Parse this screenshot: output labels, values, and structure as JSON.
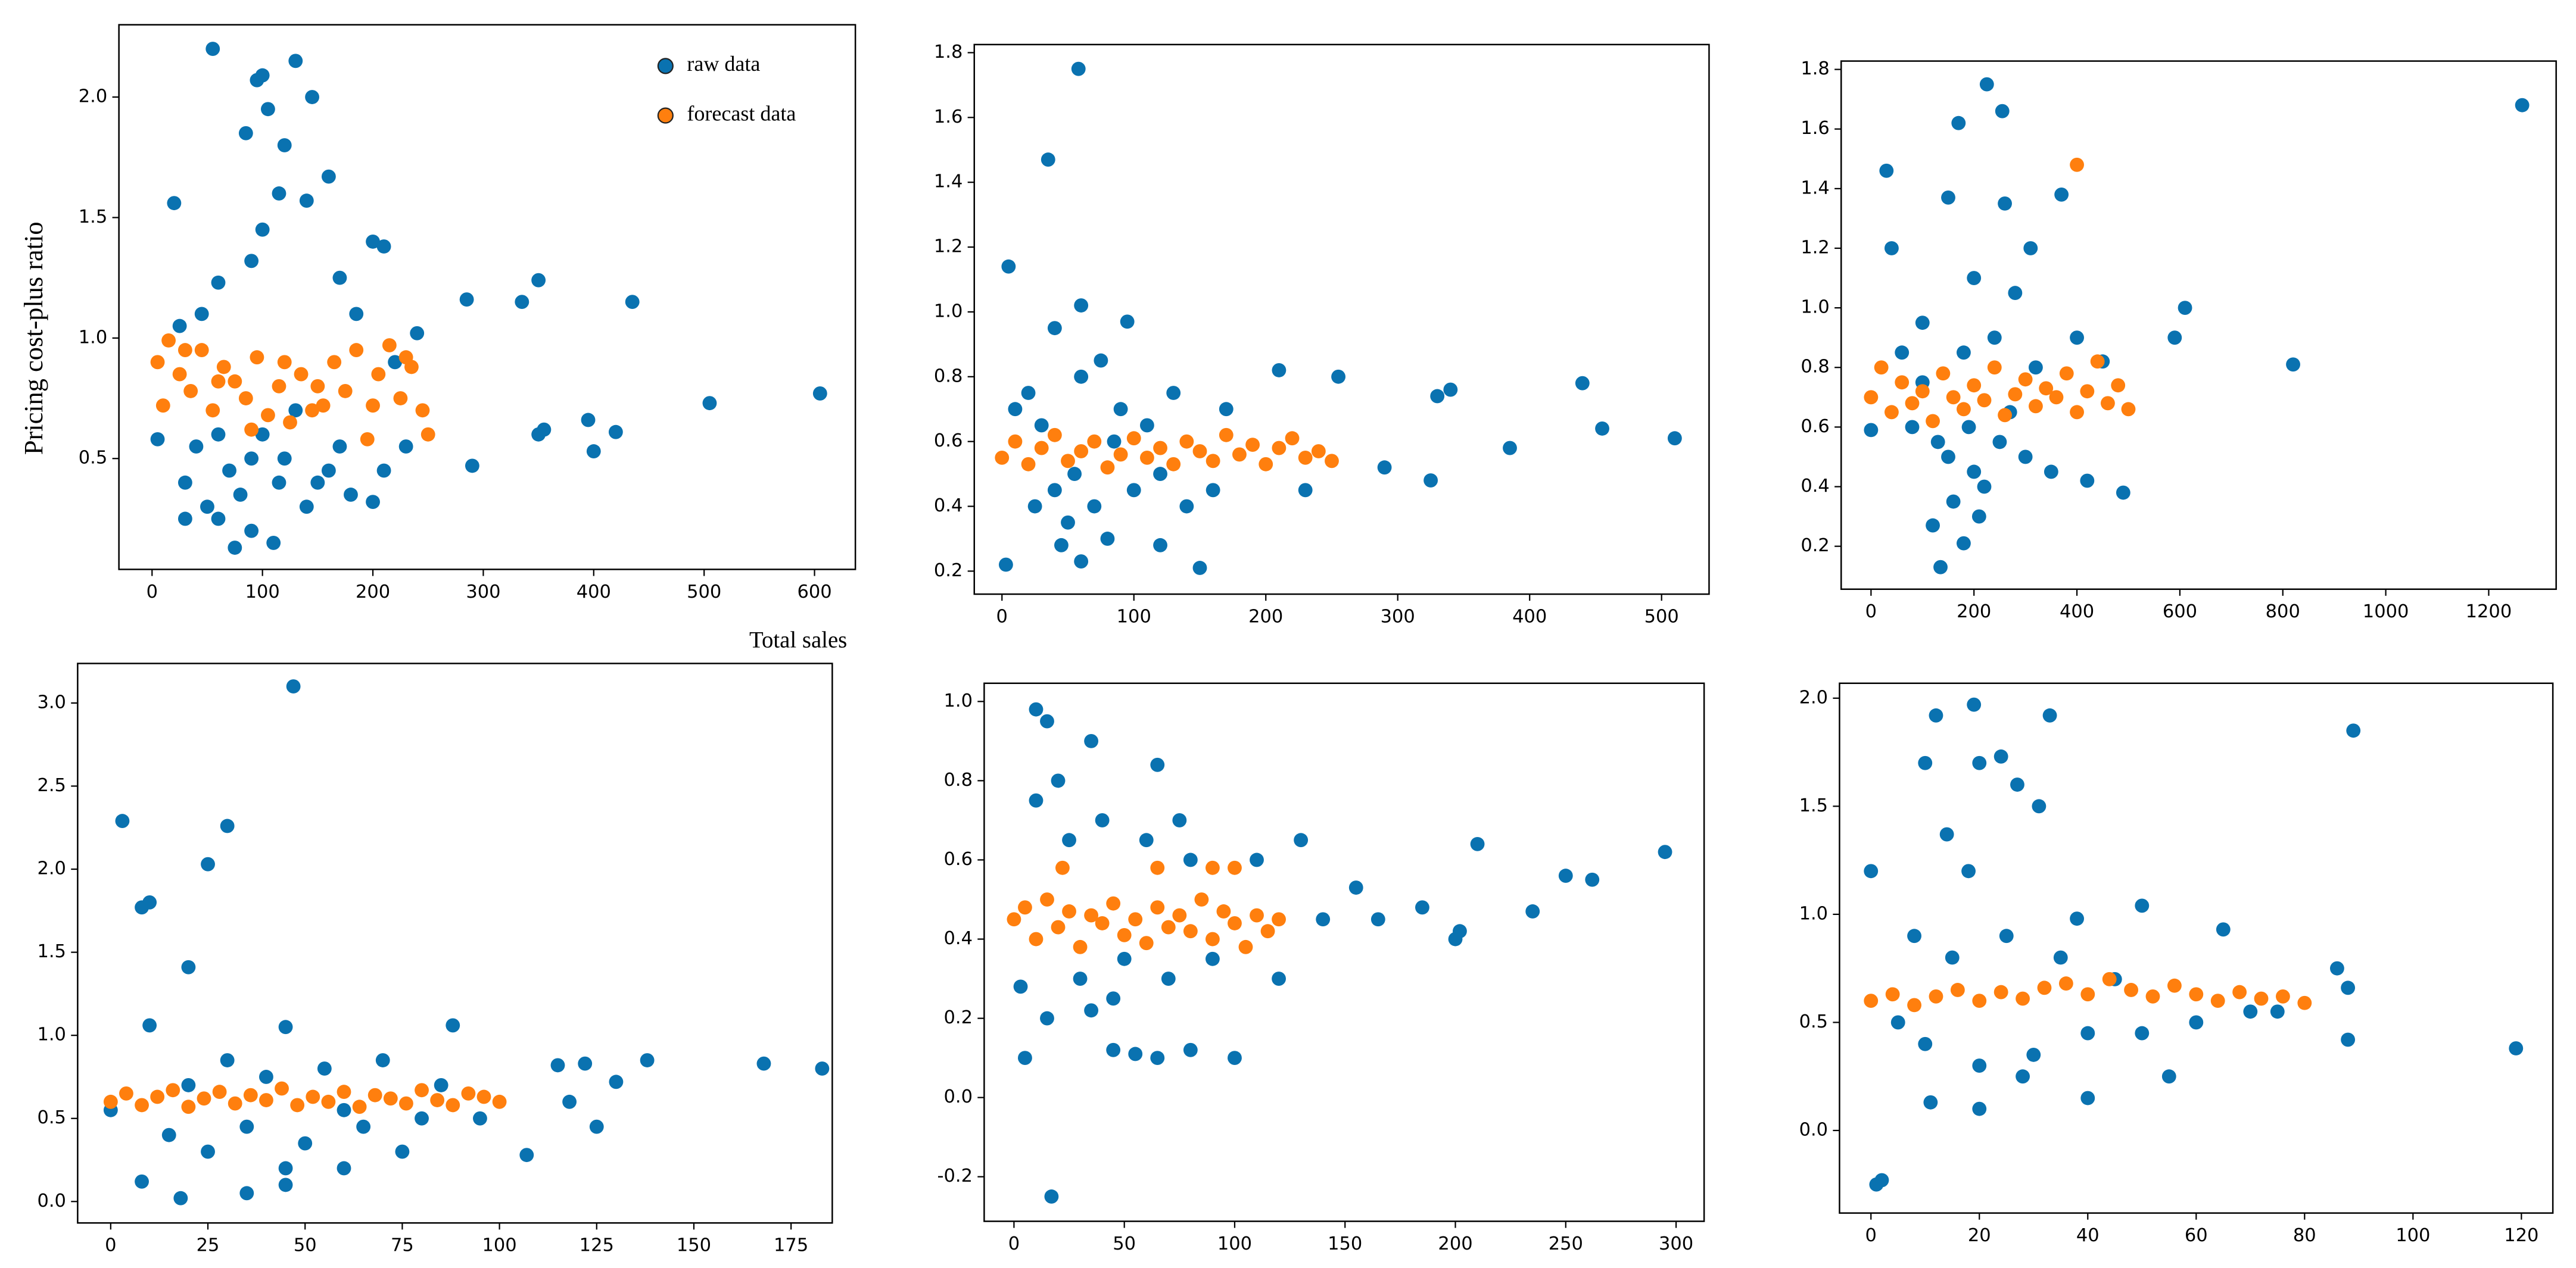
{
  "chart_data": [
    {
      "type": "scatter",
      "ylabel": "Pricing cost-plus ratio",
      "xlabel": "Total sales",
      "legend": "upper right",
      "xlim": [
        -30,
        637
      ],
      "ylim": [
        0.04,
        2.3
      ],
      "xticks": [
        0,
        100,
        200,
        300,
        400,
        500,
        600
      ],
      "yticks": [
        0.5,
        {
          "value": 1.0,
          "label": "1.0"
        },
        1.5,
        {
          "value": 2.0,
          "label": "2.0"
        }
      ],
      "series": [
        {
          "name": "raw data",
          "color": "#0a72b0",
          "x": [
            55,
            100,
            130,
            145,
            95,
            85,
            105,
            120,
            160,
            115,
            140,
            20,
            100,
            90,
            200,
            210,
            170,
            285,
            335,
            350,
            435,
            605,
            505,
            395,
            355,
            350,
            420,
            400,
            290,
            60,
            30,
            50,
            70,
            90,
            40,
            60,
            80,
            110,
            75,
            120,
            150,
            180,
            200,
            30,
            100,
            130,
            25,
            45,
            170,
            210,
            5,
            140,
            60,
            90,
            115,
            230,
            220,
            240,
            185,
            160
          ],
          "y": [
            2.2,
            2.09,
            2.15,
            2.0,
            2.07,
            1.85,
            1.95,
            1.8,
            1.67,
            1.6,
            1.57,
            1.56,
            1.45,
            1.32,
            1.4,
            1.38,
            1.25,
            1.16,
            1.15,
            1.24,
            1.15,
            0.77,
            0.73,
            0.66,
            0.62,
            0.6,
            0.61,
            0.53,
            0.47,
            1.23,
            0.4,
            0.3,
            0.45,
            0.2,
            0.55,
            0.25,
            0.35,
            0.15,
            0.13,
            0.5,
            0.4,
            0.35,
            0.32,
            0.25,
            0.6,
            0.7,
            1.05,
            1.1,
            0.55,
            0.45,
            0.58,
            0.3,
            0.6,
            0.5,
            0.4,
            0.55,
            0.9,
            1.02,
            1.1,
            0.45
          ]
        },
        {
          "name": "forecast data",
          "color": "#ff7f0e",
          "x": [
            5,
            15,
            25,
            35,
            45,
            55,
            65,
            75,
            85,
            95,
            105,
            115,
            125,
            135,
            145,
            155,
            165,
            175,
            185,
            195,
            205,
            215,
            225,
            235,
            245,
            250,
            10,
            30,
            60,
            90,
            120,
            150,
            200,
            230
          ],
          "y": [
            0.9,
            0.99,
            0.85,
            0.78,
            0.95,
            0.7,
            0.88,
            0.82,
            0.75,
            0.92,
            0.68,
            0.8,
            0.65,
            0.85,
            0.7,
            0.72,
            0.9,
            0.78,
            0.95,
            0.58,
            0.85,
            0.97,
            0.75,
            0.88,
            0.7,
            0.6,
            0.72,
            0.95,
            0.82,
            0.62,
            0.9,
            0.8,
            0.72,
            0.92
          ]
        }
      ]
    },
    {
      "type": "scatter",
      "xlim": [
        -21,
        536
      ],
      "ylim": [
        0.129,
        1.825
      ],
      "xticks": [
        0,
        100,
        200,
        300,
        400,
        500
      ],
      "yticks": [
        0.2,
        0.4,
        0.6,
        0.8,
        {
          "value": 1.0,
          "label": "1.0"
        },
        1.2,
        1.4,
        1.6,
        1.8
      ],
      "series": [
        {
          "color": "#0a72b0",
          "x": [
            58,
            35,
            5,
            60,
            95,
            210,
            255,
            440,
            340,
            330,
            455,
            510,
            385,
            290,
            325,
            3,
            150,
            60,
            120,
            170,
            230,
            40,
            20,
            30,
            40,
            50,
            60,
            70,
            80,
            90,
            100,
            110,
            120,
            130,
            140,
            160,
            25,
            45,
            75,
            10,
            55,
            85
          ],
          "y": [
            1.75,
            1.47,
            1.14,
            1.02,
            0.97,
            0.82,
            0.8,
            0.78,
            0.76,
            0.74,
            0.64,
            0.61,
            0.58,
            0.52,
            0.48,
            0.22,
            0.21,
            0.23,
            0.28,
            0.7,
            0.45,
            0.95,
            0.75,
            0.65,
            0.45,
            0.35,
            0.8,
            0.4,
            0.3,
            0.7,
            0.45,
            0.65,
            0.5,
            0.75,
            0.4,
            0.45,
            0.4,
            0.28,
            0.85,
            0.7,
            0.5,
            0.6
          ]
        },
        {
          "color": "#ff7f0e",
          "x": [
            0,
            10,
            20,
            30,
            40,
            50,
            60,
            70,
            80,
            90,
            100,
            110,
            120,
            130,
            140,
            150,
            160,
            170,
            180,
            190,
            200,
            210,
            220,
            230,
            240,
            250
          ],
          "y": [
            0.55,
            0.6,
            0.53,
            0.58,
            0.62,
            0.54,
            0.57,
            0.6,
            0.52,
            0.56,
            0.61,
            0.55,
            0.58,
            0.53,
            0.6,
            0.57,
            0.54,
            0.62,
            0.56,
            0.59,
            0.53,
            0.58,
            0.61,
            0.55,
            0.57,
            0.54
          ]
        }
      ]
    },
    {
      "type": "scatter",
      "xlim": [
        -58,
        1331
      ],
      "ylim": [
        0.056,
        1.828
      ],
      "xticks": [
        0,
        200,
        400,
        600,
        800,
        1000,
        1200
      ],
      "yticks": [
        0.2,
        0.4,
        0.6,
        0.8,
        {
          "value": 1.0,
          "label": "1.0"
        },
        1.2,
        1.4,
        1.6,
        1.8
      ],
      "series": [
        {
          "color": "#0a72b0",
          "x": [
            1265,
            225,
            170,
            255,
            30,
            150,
            260,
            370,
            40,
            310,
            610,
            590,
            820,
            450,
            490,
            420,
            180,
            120,
            135,
            0,
            200,
            100,
            280,
            80,
            150,
            200,
            250,
            100,
            180,
            220,
            300,
            350,
            160,
            240,
            320,
            130,
            190,
            270,
            60,
            400,
            210
          ],
          "y": [
            1.68,
            1.75,
            1.62,
            1.66,
            1.46,
            1.37,
            1.35,
            1.38,
            1.2,
            1.2,
            1.0,
            0.9,
            0.81,
            0.82,
            0.38,
            0.42,
            0.21,
            0.27,
            0.13,
            0.59,
            1.1,
            0.95,
            1.05,
            0.6,
            0.5,
            0.45,
            0.55,
            0.75,
            0.85,
            0.4,
            0.5,
            0.45,
            0.35,
            0.9,
            0.8,
            0.55,
            0.6,
            0.65,
            0.85,
            0.9,
            0.3
          ]
        },
        {
          "color": "#ff7f0e",
          "x": [
            400,
            0,
            20,
            40,
            60,
            80,
            100,
            120,
            140,
            160,
            180,
            200,
            220,
            240,
            260,
            280,
            300,
            320,
            340,
            360,
            380,
            400,
            420,
            440,
            460,
            480,
            500
          ],
          "y": [
            1.48,
            0.7,
            0.8,
            0.65,
            0.75,
            0.68,
            0.72,
            0.62,
            0.78,
            0.7,
            0.66,
            0.74,
            0.69,
            0.8,
            0.64,
            0.71,
            0.76,
            0.67,
            0.73,
            0.7,
            0.78,
            0.65,
            0.72,
            0.82,
            0.68,
            0.74,
            0.66
          ]
        }
      ]
    },
    {
      "type": "scatter",
      "xlim": [
        -8.5,
        185.6
      ],
      "ylim": [
        -0.129,
        3.238
      ],
      "xticks": [
        0,
        25,
        50,
        75,
        100,
        125,
        150,
        175
      ],
      "yticks": [
        {
          "value": 0.0,
          "label": "0.0"
        },
        0.5,
        {
          "value": 1.0,
          "label": "1.0"
        },
        1.5,
        {
          "value": 2.0,
          "label": "2.0"
        },
        2.5,
        {
          "value": 3.0,
          "label": "3.0"
        }
      ],
      "series": [
        {
          "color": "#0a72b0",
          "x": [
            47,
            3,
            30,
            25,
            10,
            8,
            20,
            10,
            45,
            88,
            168,
            183,
            138,
            122,
            115,
            130,
            125,
            107,
            118,
            8,
            18,
            35,
            45,
            60,
            75,
            0,
            15,
            25,
            35,
            40,
            50,
            55,
            65,
            70,
            80,
            30,
            20,
            45,
            60,
            85,
            95
          ],
          "y": [
            3.1,
            2.29,
            2.26,
            2.03,
            1.8,
            1.77,
            1.41,
            1.06,
            1.05,
            1.06,
            0.83,
            0.8,
            0.85,
            0.83,
            0.82,
            0.72,
            0.45,
            0.28,
            0.6,
            0.12,
            0.02,
            0.05,
            0.1,
            0.2,
            0.3,
            0.55,
            0.4,
            0.3,
            0.45,
            0.75,
            0.35,
            0.8,
            0.45,
            0.85,
            0.5,
            0.85,
            0.7,
            0.2,
            0.55,
            0.7,
            0.5
          ]
        },
        {
          "color": "#ff7f0e",
          "x": [
            0,
            4,
            8,
            12,
            16,
            20,
            24,
            28,
            32,
            36,
            40,
            44,
            48,
            52,
            56,
            60,
            64,
            68,
            72,
            76,
            80,
            84,
            88,
            92,
            96,
            100
          ],
          "y": [
            0.6,
            0.65,
            0.58,
            0.63,
            0.67,
            0.57,
            0.62,
            0.66,
            0.59,
            0.64,
            0.61,
            0.68,
            0.58,
            0.63,
            0.6,
            0.66,
            0.57,
            0.64,
            0.62,
            0.59,
            0.67,
            0.61,
            0.58,
            0.65,
            0.63,
            0.6
          ]
        }
      ]
    },
    {
      "type": "scatter",
      "xlim": [
        -13.5,
        312.7
      ],
      "ylim": [
        -0.3125,
        1.046
      ],
      "xticks": [
        0,
        50,
        100,
        150,
        200,
        250,
        300
      ],
      "yticks": [
        -0.2,
        {
          "value": 0.0,
          "label": "0.0"
        },
        0.2,
        0.4,
        0.6,
        0.8,
        {
          "value": 1.0,
          "label": "1.0"
        }
      ],
      "series": [
        {
          "color": "#0a72b0",
          "x": [
            17,
            10,
            15,
            35,
            65,
            5,
            45,
            55,
            65,
            80,
            100,
            295,
            210,
            250,
            262,
            235,
            185,
            200,
            202,
            130,
            155,
            120,
            140,
            165,
            3,
            110,
            20,
            25,
            30,
            40,
            50,
            60,
            70,
            80,
            10,
            15,
            45,
            90,
            75,
            35
          ],
          "y": [
            -0.25,
            0.98,
            0.95,
            0.9,
            0.84,
            0.1,
            0.12,
            0.11,
            0.1,
            0.12,
            0.1,
            0.62,
            0.64,
            0.56,
            0.55,
            0.47,
            0.48,
            0.4,
            0.42,
            0.65,
            0.53,
            0.3,
            0.45,
            0.45,
            0.28,
            0.6,
            0.8,
            0.65,
            0.3,
            0.7,
            0.35,
            0.65,
            0.3,
            0.6,
            0.75,
            0.2,
            0.25,
            0.35,
            0.7,
            0.22
          ]
        },
        {
          "color": "#ff7f0e",
          "x": [
            22,
            65,
            90,
            100,
            0,
            5,
            10,
            15,
            20,
            25,
            30,
            35,
            40,
            45,
            50,
            55,
            60,
            65,
            70,
            75,
            80,
            85,
            90,
            95,
            100,
            105,
            110,
            115,
            120
          ],
          "y": [
            0.58,
            0.58,
            0.58,
            0.58,
            0.45,
            0.48,
            0.4,
            0.5,
            0.43,
            0.47,
            0.38,
            0.46,
            0.44,
            0.49,
            0.41,
            0.45,
            0.39,
            0.48,
            0.43,
            0.46,
            0.42,
            0.5,
            0.4,
            0.47,
            0.44,
            0.38,
            0.46,
            0.42,
            0.45
          ]
        }
      ]
    },
    {
      "type": "scatter",
      "xlim": [
        -5.8,
        125.8
      ],
      "ylim": [
        -0.382,
        2.069
      ],
      "xticks": [
        0,
        20,
        40,
        60,
        80,
        100,
        120
      ],
      "yticks": [
        {
          "value": 0.0,
          "label": "0.0"
        },
        0.5,
        {
          "value": 1.0,
          "label": "1.0"
        },
        1.5,
        {
          "value": 2.0,
          "label": "2.0"
        }
      ],
      "series": [
        {
          "color": "#0a72b0",
          "x": [
            1,
            2,
            19,
            12,
            33,
            89,
            119,
            10,
            20,
            24,
            27,
            31,
            14,
            88,
            88,
            86,
            65,
            50,
            55,
            40,
            20,
            11,
            0,
            5,
            10,
            15,
            20,
            25,
            30,
            35,
            40,
            45,
            50,
            60,
            70,
            8,
            18,
            28,
            38,
            75
          ],
          "y": [
            -0.25,
            -0.23,
            1.97,
            1.92,
            1.92,
            1.85,
            0.38,
            1.7,
            1.7,
            1.73,
            1.6,
            1.5,
            1.37,
            0.66,
            0.42,
            0.75,
            0.93,
            1.04,
            0.25,
            0.15,
            0.1,
            0.13,
            1.2,
            0.5,
            0.4,
            0.8,
            0.3,
            0.9,
            0.35,
            0.8,
            0.45,
            0.7,
            0.45,
            0.5,
            0.55,
            0.9,
            1.2,
            0.25,
            0.98,
            0.55
          ]
        },
        {
          "color": "#ff7f0e",
          "x": [
            0,
            4,
            8,
            12,
            16,
            20,
            24,
            28,
            32,
            36,
            40,
            44,
            48,
            52,
            56,
            60,
            64,
            68,
            72,
            76,
            80
          ],
          "y": [
            0.6,
            0.63,
            0.58,
            0.62,
            0.65,
            0.6,
            0.64,
            0.61,
            0.66,
            0.68,
            0.63,
            0.7,
            0.65,
            0.62,
            0.67,
            0.63,
            0.6,
            0.64,
            0.61,
            0.62,
            0.59
          ]
        }
      ]
    }
  ]
}
